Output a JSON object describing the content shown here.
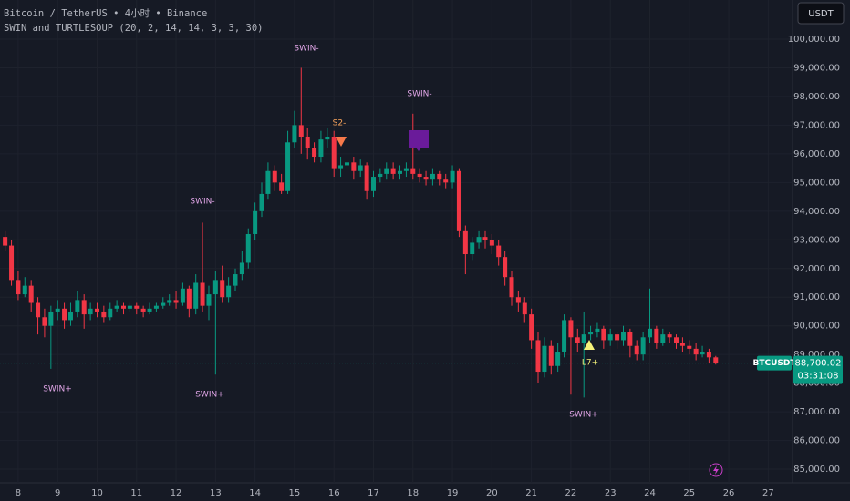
{
  "chart_data": {
    "type": "candlestick",
    "title": "Bitcoin / TetherUS • 4小时 • Binance",
    "subtitle": "SWIN and TURTLESOUP (20, 2, 14, 14, 3, 3, 30)",
    "currency": "USDT",
    "symbol": "BTCUSDT",
    "last_price_label": "88,700.02",
    "countdown": "03:31:08",
    "up_color": "#089981",
    "down_color": "#f23645",
    "grid": true,
    "annotations": [
      "SWIN-",
      "SWIN-",
      "SWIN-",
      "SWIN+",
      "SWIN+",
      "SWIN+",
      "S2-",
      "L7+"
    ],
    "xlim": [
      7.54,
      27.5
    ],
    "xticks": [
      8,
      9,
      10,
      11,
      12,
      13,
      14,
      15,
      16,
      17,
      18,
      19,
      20,
      21,
      22,
      23,
      24,
      25,
      26,
      27
    ],
    "ylim": [
      84525,
      101366
    ],
    "yticks": [
      {
        "value": 85000,
        "label": "85,000.00"
      },
      {
        "value": 86000,
        "label": "86,000.00"
      },
      {
        "value": 87000,
        "label": "87,000.00"
      },
      {
        "value": 88000,
        "label": "88,000.00"
      },
      {
        "value": 89000,
        "label": "89,000.00"
      },
      {
        "value": 90000,
        "label": "90,000.00"
      },
      {
        "value": 91000,
        "label": "91,000.00"
      },
      {
        "value": 92000,
        "label": "92,000.00"
      },
      {
        "value": 93000,
        "label": "93,000.00"
      },
      {
        "value": 94000,
        "label": "94,000.00"
      },
      {
        "value": 95000,
        "label": "95,000.00"
      },
      {
        "value": 96000,
        "label": "96,000.00"
      },
      {
        "value": 97000,
        "label": "97,000.00"
      },
      {
        "value": 98000,
        "label": "98,000.00"
      },
      {
        "value": 99000,
        "label": "99,000.00"
      },
      {
        "value": 100000,
        "label": "100,000.00"
      }
    ],
    "x": [
      7.67,
      7.83,
      8,
      8.17,
      8.33,
      8.5,
      8.67,
      8.83,
      9,
      9.17,
      9.33,
      9.5,
      9.67,
      9.83,
      10,
      10.17,
      10.33,
      10.5,
      10.67,
      10.83,
      11,
      11.17,
      11.33,
      11.5,
      11.67,
      11.83,
      12,
      12.17,
      12.33,
      12.5,
      12.67,
      12.83,
      13,
      13.17,
      13.33,
      13.5,
      13.67,
      13.83,
      14,
      14.17,
      14.33,
      14.5,
      14.67,
      14.83,
      15,
      15.17,
      15.33,
      15.5,
      15.67,
      15.83,
      16,
      16.17,
      16.33,
      16.5,
      16.67,
      16.83,
      17,
      17.17,
      17.33,
      17.5,
      17.67,
      17.83,
      18,
      18.17,
      18.33,
      18.5,
      18.67,
      18.83,
      19,
      19.17,
      19.33,
      19.5,
      19.67,
      19.83,
      20,
      20.17,
      20.33,
      20.5,
      20.67,
      20.83,
      21,
      21.17,
      21.33,
      21.5,
      21.67,
      21.83,
      22,
      22.17,
      22.33,
      22.5,
      22.67,
      22.83,
      23,
      23.17,
      23.33,
      23.5,
      23.67,
      23.83,
      24,
      24.17,
      24.33,
      24.5,
      24.67,
      24.83,
      25,
      25.17,
      25.33,
      25.5,
      25.67
    ],
    "open": [
      93100,
      92800,
      91600,
      91100,
      91400,
      90800,
      90300,
      90000,
      90500,
      90600,
      90200,
      90500,
      90900,
      90400,
      90600,
      90500,
      90300,
      90600,
      90700,
      90600,
      90700,
      90600,
      90500,
      90600,
      90700,
      90800,
      90900,
      90800,
      91300,
      90600,
      91500,
      90700,
      91100,
      91600,
      91000,
      91400,
      91800,
      92200,
      93200,
      94000,
      94600,
      95400,
      95000,
      94700,
      96400,
      97000,
      96600,
      96200,
      95900,
      96500,
      96600,
      95500,
      95600,
      95700,
      95400,
      95600,
      94700,
      95200,
      95300,
      95500,
      95300,
      95400,
      95500,
      95300,
      95200,
      95100,
      95300,
      95100,
      95000,
      95400,
      93300,
      92500,
      92900,
      93100,
      93000,
      92800,
      92400,
      91700,
      91000,
      90800,
      90400,
      89500,
      88400,
      89300,
      88600,
      89100,
      90200,
      89600,
      89400,
      89700,
      89800,
      89900,
      89500,
      89700,
      89500,
      89800,
      89300,
      89000,
      89600,
      89900,
      89400,
      89700,
      89600,
      89400,
      89300,
      89200,
      89000,
      89100,
      88900
    ],
    "high": [
      93300,
      93000,
      91900,
      91700,
      91600,
      91000,
      90600,
      90700,
      90900,
      90800,
      90800,
      91200,
      91100,
      90800,
      90800,
      90700,
      90800,
      90900,
      90800,
      90800,
      90800,
      90700,
      90800,
      90800,
      91000,
      91100,
      91200,
      91500,
      91400,
      91800,
      93600,
      91400,
      91900,
      92100,
      91700,
      92000,
      92600,
      93400,
      94300,
      95000,
      95700,
      95600,
      95300,
      96800,
      97500,
      99000,
      96900,
      96400,
      96800,
      96900,
      96800,
      95900,
      96000,
      95900,
      95800,
      95700,
      95400,
      95500,
      95700,
      95700,
      95600,
      95700,
      97400,
      95500,
      95400,
      95500,
      95400,
      95300,
      95600,
      95500,
      93500,
      93100,
      93300,
      93300,
      93200,
      93000,
      92600,
      91900,
      91200,
      91000,
      90600,
      89800,
      89600,
      89500,
      89400,
      90400,
      90300,
      89900,
      90500,
      90000,
      90100,
      90000,
      89900,
      89800,
      90000,
      89900,
      89500,
      89800,
      91300,
      90000,
      89900,
      89800,
      89700,
      89600,
      89500,
      89400,
      89300,
      89200,
      88950
    ],
    "low": [
      92600,
      91400,
      90900,
      91000,
      90500,
      89700,
      89600,
      88500,
      90200,
      89900,
      90000,
      90300,
      89900,
      90200,
      90300,
      90100,
      90200,
      90500,
      90400,
      90500,
      90400,
      90300,
      90400,
      90500,
      90600,
      90700,
      90600,
      90700,
      90300,
      90400,
      90500,
      90200,
      88300,
      90800,
      90800,
      91200,
      91600,
      92000,
      93000,
      93800,
      94400,
      94700,
      94600,
      94600,
      96200,
      96000,
      95800,
      95700,
      95700,
      96200,
      95200,
      95200,
      95400,
      95100,
      95200,
      94400,
      94500,
      95000,
      95100,
      95100,
      95100,
      95200,
      95100,
      95000,
      94900,
      94900,
      94900,
      94800,
      94800,
      93100,
      91800,
      92300,
      92700,
      92700,
      92500,
      92100,
      91400,
      90700,
      90500,
      90100,
      89200,
      88000,
      88200,
      88300,
      88400,
      88900,
      87600,
      89100,
      87500,
      89500,
      89600,
      89200,
      89300,
      89200,
      89300,
      88900,
      88800,
      88800,
      89400,
      89200,
      89300,
      89400,
      89200,
      89100,
      89000,
      88800,
      88900,
      88700,
      88650
    ],
    "close": [
      92800,
      91600,
      91100,
      91400,
      90800,
      90300,
      90000,
      90500,
      90600,
      90200,
      90500,
      90900,
      90400,
      90600,
      90500,
      90300,
      90600,
      90700,
      90600,
      90700,
      90600,
      90500,
      90600,
      90700,
      90800,
      90900,
      90800,
      91300,
      90600,
      91500,
      90700,
      91100,
      91600,
      91000,
      91400,
      91800,
      92200,
      93200,
      94000,
      94600,
      95400,
      95000,
      94700,
      96400,
      97000,
      96600,
      96200,
      95900,
      96500,
      96600,
      95500,
      95600,
      95700,
      95400,
      95600,
      94700,
      95200,
      95300,
      95500,
      95300,
      95400,
      95500,
      95300,
      95200,
      95100,
      95300,
      95100,
      95000,
      95400,
      93300,
      92500,
      92900,
      93100,
      93000,
      92800,
      92400,
      91700,
      91000,
      90800,
      90400,
      89500,
      88400,
      89300,
      88600,
      89100,
      90200,
      89600,
      89400,
      89700,
      89800,
      89900,
      89500,
      89700,
      89500,
      89800,
      89300,
      89000,
      89600,
      89900,
      89400,
      89700,
      89600,
      89400,
      89300,
      89200,
      89000,
      89100,
      88900,
      88700.02
    ]
  }
}
